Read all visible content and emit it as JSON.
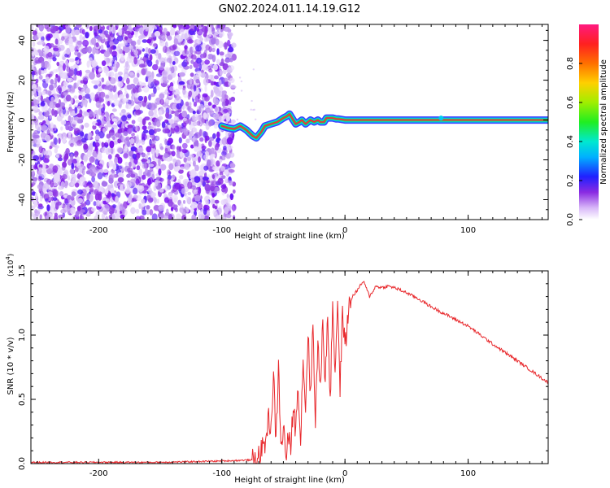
{
  "title": "GN02.2024.011.14.19.G12",
  "colors": {
    "snr_line": "#e8282c",
    "ridge_core": "#ff1a4a",
    "ridge_mid": "#22dd44",
    "ridge_outer": "#2a2aff",
    "noise": "#8a2be2"
  },
  "chart_data": [
    {
      "type": "heatmap",
      "name": "spectrogram",
      "xlabel": "Height of straight line (km)",
      "ylabel": "Frequency (Hz)",
      "xlim": [
        -255,
        165
      ],
      "ylim": [
        -50,
        48
      ],
      "x_ticks": [
        -200,
        -100,
        0,
        100
      ],
      "x_tick_labels": [
        "-200",
        "-100",
        "0",
        "100"
      ],
      "y_ticks": [
        -40,
        -20,
        0,
        20,
        40
      ],
      "y_tick_labels": [
        "-40",
        "-20",
        "0",
        "20",
        "40"
      ],
      "noise_region_x": [
        -255,
        -90
      ],
      "ridge": {
        "x": [
          -100,
          -95,
          -90,
          -85,
          -80,
          -75,
          -72,
          -68,
          -65,
          -60,
          -55,
          -50,
          -47,
          -45,
          -42,
          -40,
          -37,
          -35,
          -32,
          -30,
          -28,
          -25,
          -22,
          -20,
          -17,
          -15,
          -12,
          -10,
          -7,
          -5,
          0,
          20,
          40,
          60,
          80,
          100,
          120,
          140,
          165
        ],
        "y": [
          -3,
          -4,
          -4.5,
          -3,
          -5,
          -8,
          -9,
          -6,
          -3,
          -2,
          -1,
          1,
          2,
          3,
          0,
          -2,
          -1,
          0,
          -2,
          -1,
          0,
          -1,
          0,
          -1,
          -1,
          1,
          1,
          1,
          0.5,
          0.5,
          0,
          0,
          0,
          0,
          0,
          0,
          0,
          0,
          0
        ]
      },
      "colorbar": {
        "label": "Normalized spectral amplitude",
        "ticks": [
          0.0,
          0.2,
          0.4,
          0.6,
          0.8
        ],
        "tick_labels": [
          "0.0",
          "0.2",
          "0.4",
          "0.6",
          "0.8"
        ],
        "range": [
          0,
          1
        ]
      },
      "grid": false
    },
    {
      "type": "line",
      "name": "snr",
      "xlabel": "Height of straight line (km)",
      "ylabel": "SNR (10 * v/v)",
      "scale_note": "(x10",
      "scale_exp": "4",
      "scale_close": ")",
      "xlim": [
        -255,
        165
      ],
      "ylim": [
        0,
        1.5
      ],
      "x_ticks": [
        -200,
        -100,
        0,
        100
      ],
      "x_tick_labels": [
        "-200",
        "-100",
        "0",
        "100"
      ],
      "y_ticks": [
        0.0,
        0.5,
        1.0,
        1.5
      ],
      "y_tick_labels": [
        "0.0",
        "0.5",
        "1.0",
        "1.5"
      ],
      "series": [
        {
          "x": [
            -255,
            -200,
            -150,
            -100,
            -72,
            -65,
            -62,
            -60,
            -58,
            -56,
            -54,
            -52,
            -50,
            -48,
            -46,
            -44,
            -42,
            -40,
            -38,
            -36,
            -34,
            -32,
            -30,
            -28,
            -26,
            -24,
            -22,
            -20,
            -18,
            -16,
            -14,
            -12,
            -10,
            -8,
            -6,
            -4,
            -2,
            0,
            3,
            6,
            10,
            15,
            20,
            25,
            30,
            35,
            40,
            45,
            50,
            60,
            70,
            80,
            90,
            100,
            120,
            140,
            165
          ],
          "y": [
            0.01,
            0.01,
            0.01,
            0.02,
            0.03,
            0.15,
            0.35,
            0.28,
            0.7,
            0.15,
            0.78,
            0.1,
            0.3,
            0.05,
            0.2,
            0.12,
            0.45,
            0.25,
            0.65,
            0.15,
            0.85,
            0.4,
            1.05,
            0.5,
            1.1,
            0.35,
            0.95,
            0.55,
            1.15,
            0.6,
            1.2,
            0.45,
            1.25,
            0.7,
            1.3,
            0.55,
            1.2,
            0.9,
            1.2,
            1.3,
            1.35,
            1.42,
            1.3,
            1.38,
            1.37,
            1.38,
            1.37,
            1.35,
            1.33,
            1.28,
            1.22,
            1.17,
            1.12,
            1.07,
            0.93,
            0.8,
            0.63
          ]
        }
      ],
      "grid": false
    }
  ]
}
